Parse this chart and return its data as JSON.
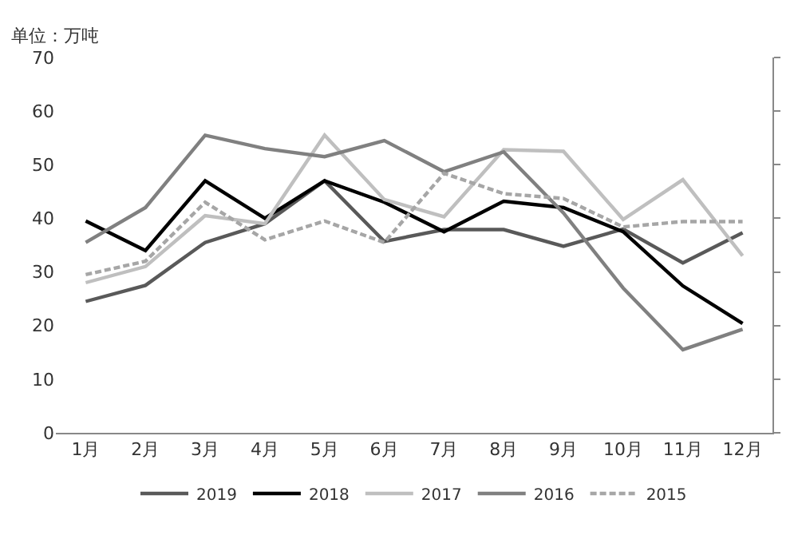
{
  "chart_data": {
    "type": "line",
    "ylabel": "单位：万吨",
    "categories": [
      "1月",
      "2月",
      "3月",
      "4月",
      "5月",
      "6月",
      "7月",
      "8月",
      "9月",
      "10月",
      "11月",
      "12月"
    ],
    "series": [
      {
        "name": "2019",
        "color": "#595959",
        "line_style": "solid",
        "values": [
          24.5,
          27.5,
          35.5,
          39,
          47,
          35.7,
          37.9,
          37.9,
          34.8,
          38,
          31.7,
          37.3
        ]
      },
      {
        "name": "2018",
        "color": "#000000",
        "line_style": "solid",
        "values": [
          39.5,
          34,
          47,
          40,
          47,
          43,
          37.5,
          43.2,
          42,
          37.5,
          27.4,
          20.4
        ]
      },
      {
        "name": "2017",
        "color": "#bfbfbf",
        "line_style": "solid",
        "values": [
          28,
          31,
          40.5,
          39,
          55.5,
          43.5,
          40.3,
          52.8,
          52.5,
          39.8,
          47.2,
          33
        ]
      },
      {
        "name": "2016",
        "color": "#808080",
        "line_style": "solid",
        "values": [
          35.5,
          42,
          55.5,
          53,
          51.5,
          54.5,
          48.7,
          52.4,
          41,
          27,
          15.5,
          19.3
        ]
      },
      {
        "name": "2015",
        "color": "#a6a6a6",
        "line_style": "dashed",
        "values": [
          29.5,
          32,
          43,
          36,
          39.5,
          35.5,
          48.4,
          44.6,
          43.7,
          38.4,
          39.4,
          39.4
        ]
      }
    ],
    "ylim": [
      0,
      70
    ],
    "yticks": [
      0,
      10,
      20,
      30,
      40,
      50,
      60,
      70
    ],
    "legend": "bottom",
    "marker": "none"
  }
}
